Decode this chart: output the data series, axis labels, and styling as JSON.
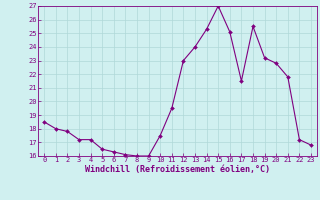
{
  "x": [
    0,
    1,
    2,
    3,
    4,
    5,
    6,
    7,
    8,
    9,
    10,
    11,
    12,
    13,
    14,
    15,
    16,
    17,
    18,
    19,
    20,
    21,
    22,
    23
  ],
  "y": [
    18.5,
    18.0,
    17.8,
    17.2,
    17.2,
    16.5,
    16.3,
    16.1,
    16.0,
    16.0,
    17.5,
    19.5,
    23.0,
    24.0,
    25.3,
    27.0,
    25.1,
    21.5,
    25.5,
    23.2,
    22.8,
    21.8,
    17.2,
    16.8
  ],
  "line_color": "#800080",
  "marker": "D",
  "marker_size": 2.0,
  "bg_color": "#d0f0f0",
  "grid_color": "#b0d8d8",
  "xlabel": "Windchill (Refroidissement éolien,°C)",
  "ylim": [
    16,
    27
  ],
  "xlim_min": -0.5,
  "xlim_max": 23.5,
  "yticks": [
    16,
    17,
    18,
    19,
    20,
    21,
    22,
    23,
    24,
    25,
    26,
    27
  ],
  "xticks": [
    0,
    1,
    2,
    3,
    4,
    5,
    6,
    7,
    8,
    9,
    10,
    11,
    12,
    13,
    14,
    15,
    16,
    17,
    18,
    19,
    20,
    21,
    22,
    23
  ],
  "tick_color": "#800080",
  "label_color": "#800080",
  "tick_fontsize": 5.0,
  "xlabel_fontsize": 6.0,
  "linewidth": 0.8
}
